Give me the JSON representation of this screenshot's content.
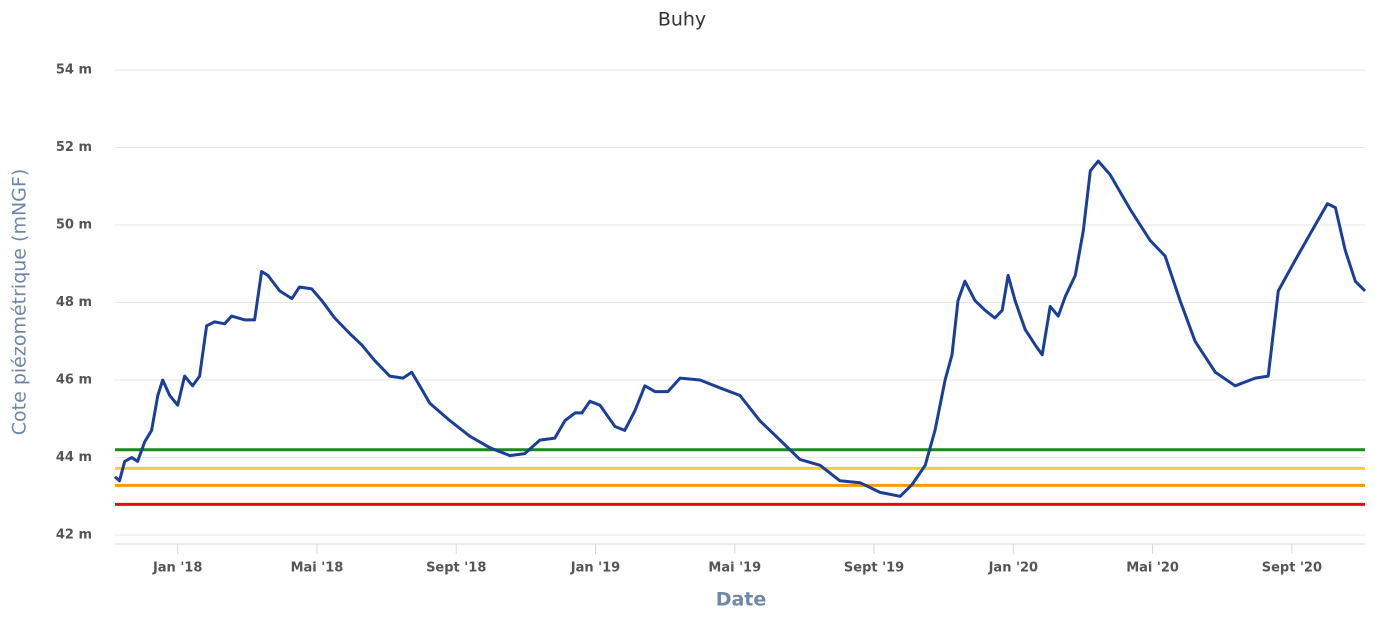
{
  "chart_data": {
    "type": "line",
    "title": "Buhy",
    "x_label": "Date",
    "y_label": "Cote piézométrique (mNGF)",
    "xlim": [
      -1.8,
      34.1
    ],
    "xticks": [
      {
        "value": 0,
        "label": "Jan '18"
      },
      {
        "value": 4,
        "label": "Mai '18"
      },
      {
        "value": 8,
        "label": "Sept '18"
      },
      {
        "value": 12,
        "label": "Jan '19"
      },
      {
        "value": 16,
        "label": "Mai '19"
      },
      {
        "value": 20,
        "label": "Sept '19"
      },
      {
        "value": 24,
        "label": "Jan '20"
      },
      {
        "value": 28,
        "label": "Mai '20"
      },
      {
        "value": 32,
        "label": "Sept '20"
      }
    ],
    "ylim": [
      42,
      54
    ],
    "yticks": [
      {
        "value": 42,
        "label": "42 m"
      },
      {
        "value": 44,
        "label": "44 m"
      },
      {
        "value": 46,
        "label": "46 m"
      },
      {
        "value": 48,
        "label": "48 m"
      },
      {
        "value": 50,
        "label": "50 m"
      },
      {
        "value": 52,
        "label": "52 m"
      },
      {
        "value": 54,
        "label": "54 m"
      }
    ],
    "grid": true,
    "reference_lines": [
      {
        "value": 44.2,
        "color": "#1a8a1a"
      },
      {
        "value": 43.72,
        "color": "#ffcc33"
      },
      {
        "value": 43.28,
        "color": "#ff9900"
      },
      {
        "value": 42.79,
        "color": "#e01010"
      }
    ],
    "series": [
      {
        "color": "#1a3f99",
        "x": [
          -1.8,
          -1.67,
          -1.52,
          -1.32,
          -1.15,
          -0.95,
          -0.75,
          -0.57,
          -0.43,
          -0.23,
          0,
          0.2,
          0.43,
          0.63,
          0.83,
          1.06,
          1.35,
          1.55,
          1.93,
          2.21,
          2.41,
          2.59,
          2.93,
          3.28,
          3.5,
          3.85,
          4.14,
          4.51,
          4.94,
          5.29,
          5.66,
          6.09,
          6.47,
          6.72,
          6.95,
          7.24,
          7.82,
          8.39,
          8.97,
          9.54,
          9.97,
          10.4,
          10.83,
          11.12,
          11.41,
          11.61,
          11.84,
          12.13,
          12.56,
          12.84,
          13.13,
          13.42,
          13.71,
          14.08,
          14.43,
          15.0,
          15.57,
          16.15,
          16.72,
          17.3,
          17.87,
          18.45,
          19.02,
          19.6,
          20.17,
          20.75,
          21.09,
          21.47,
          21.75,
          22.04,
          22.24,
          22.41,
          22.61,
          22.9,
          23.19,
          23.47,
          23.68,
          23.85,
          24.05,
          24.34,
          24.63,
          24.83,
          25.06,
          25.29,
          25.49,
          25.78,
          26.01,
          26.21,
          26.44,
          26.78,
          27.36,
          27.93,
          28.36,
          28.79,
          29.22,
          29.8,
          30.37,
          30.95,
          31.32,
          31.61,
          32.1,
          32.67,
          33.02,
          33.25,
          33.53,
          33.82,
          34.1
        ],
        "values": [
          43.5,
          43.4,
          43.9,
          44.0,
          43.9,
          44.4,
          44.7,
          45.6,
          46.0,
          45.6,
          45.35,
          46.1,
          45.85,
          46.1,
          47.4,
          47.5,
          47.45,
          47.65,
          47.55,
          47.55,
          48.8,
          48.7,
          48.3,
          48.1,
          48.4,
          48.35,
          48.05,
          47.6,
          47.2,
          46.9,
          46.5,
          46.1,
          46.05,
          46.2,
          45.85,
          45.4,
          44.95,
          44.55,
          44.25,
          44.05,
          44.1,
          44.45,
          44.5,
          44.95,
          45.15,
          45.15,
          45.45,
          45.35,
          44.8,
          44.7,
          45.2,
          45.85,
          45.7,
          45.7,
          46.05,
          46.0,
          45.8,
          45.6,
          44.95,
          44.45,
          43.95,
          43.8,
          43.4,
          43.35,
          43.1,
          43.0,
          43.3,
          43.8,
          44.7,
          46.0,
          46.65,
          48.05,
          48.55,
          48.05,
          47.8,
          47.6,
          47.8,
          48.7,
          48.05,
          47.3,
          46.9,
          46.65,
          47.9,
          47.65,
          48.15,
          48.7,
          49.85,
          51.4,
          51.65,
          51.3,
          50.4,
          49.6,
          49.2,
          48.05,
          47.0,
          46.2,
          45.85,
          46.05,
          46.1,
          48.3,
          49.1,
          50.0,
          50.55,
          50.45,
          49.35,
          48.55,
          48.3
        ]
      }
    ]
  }
}
